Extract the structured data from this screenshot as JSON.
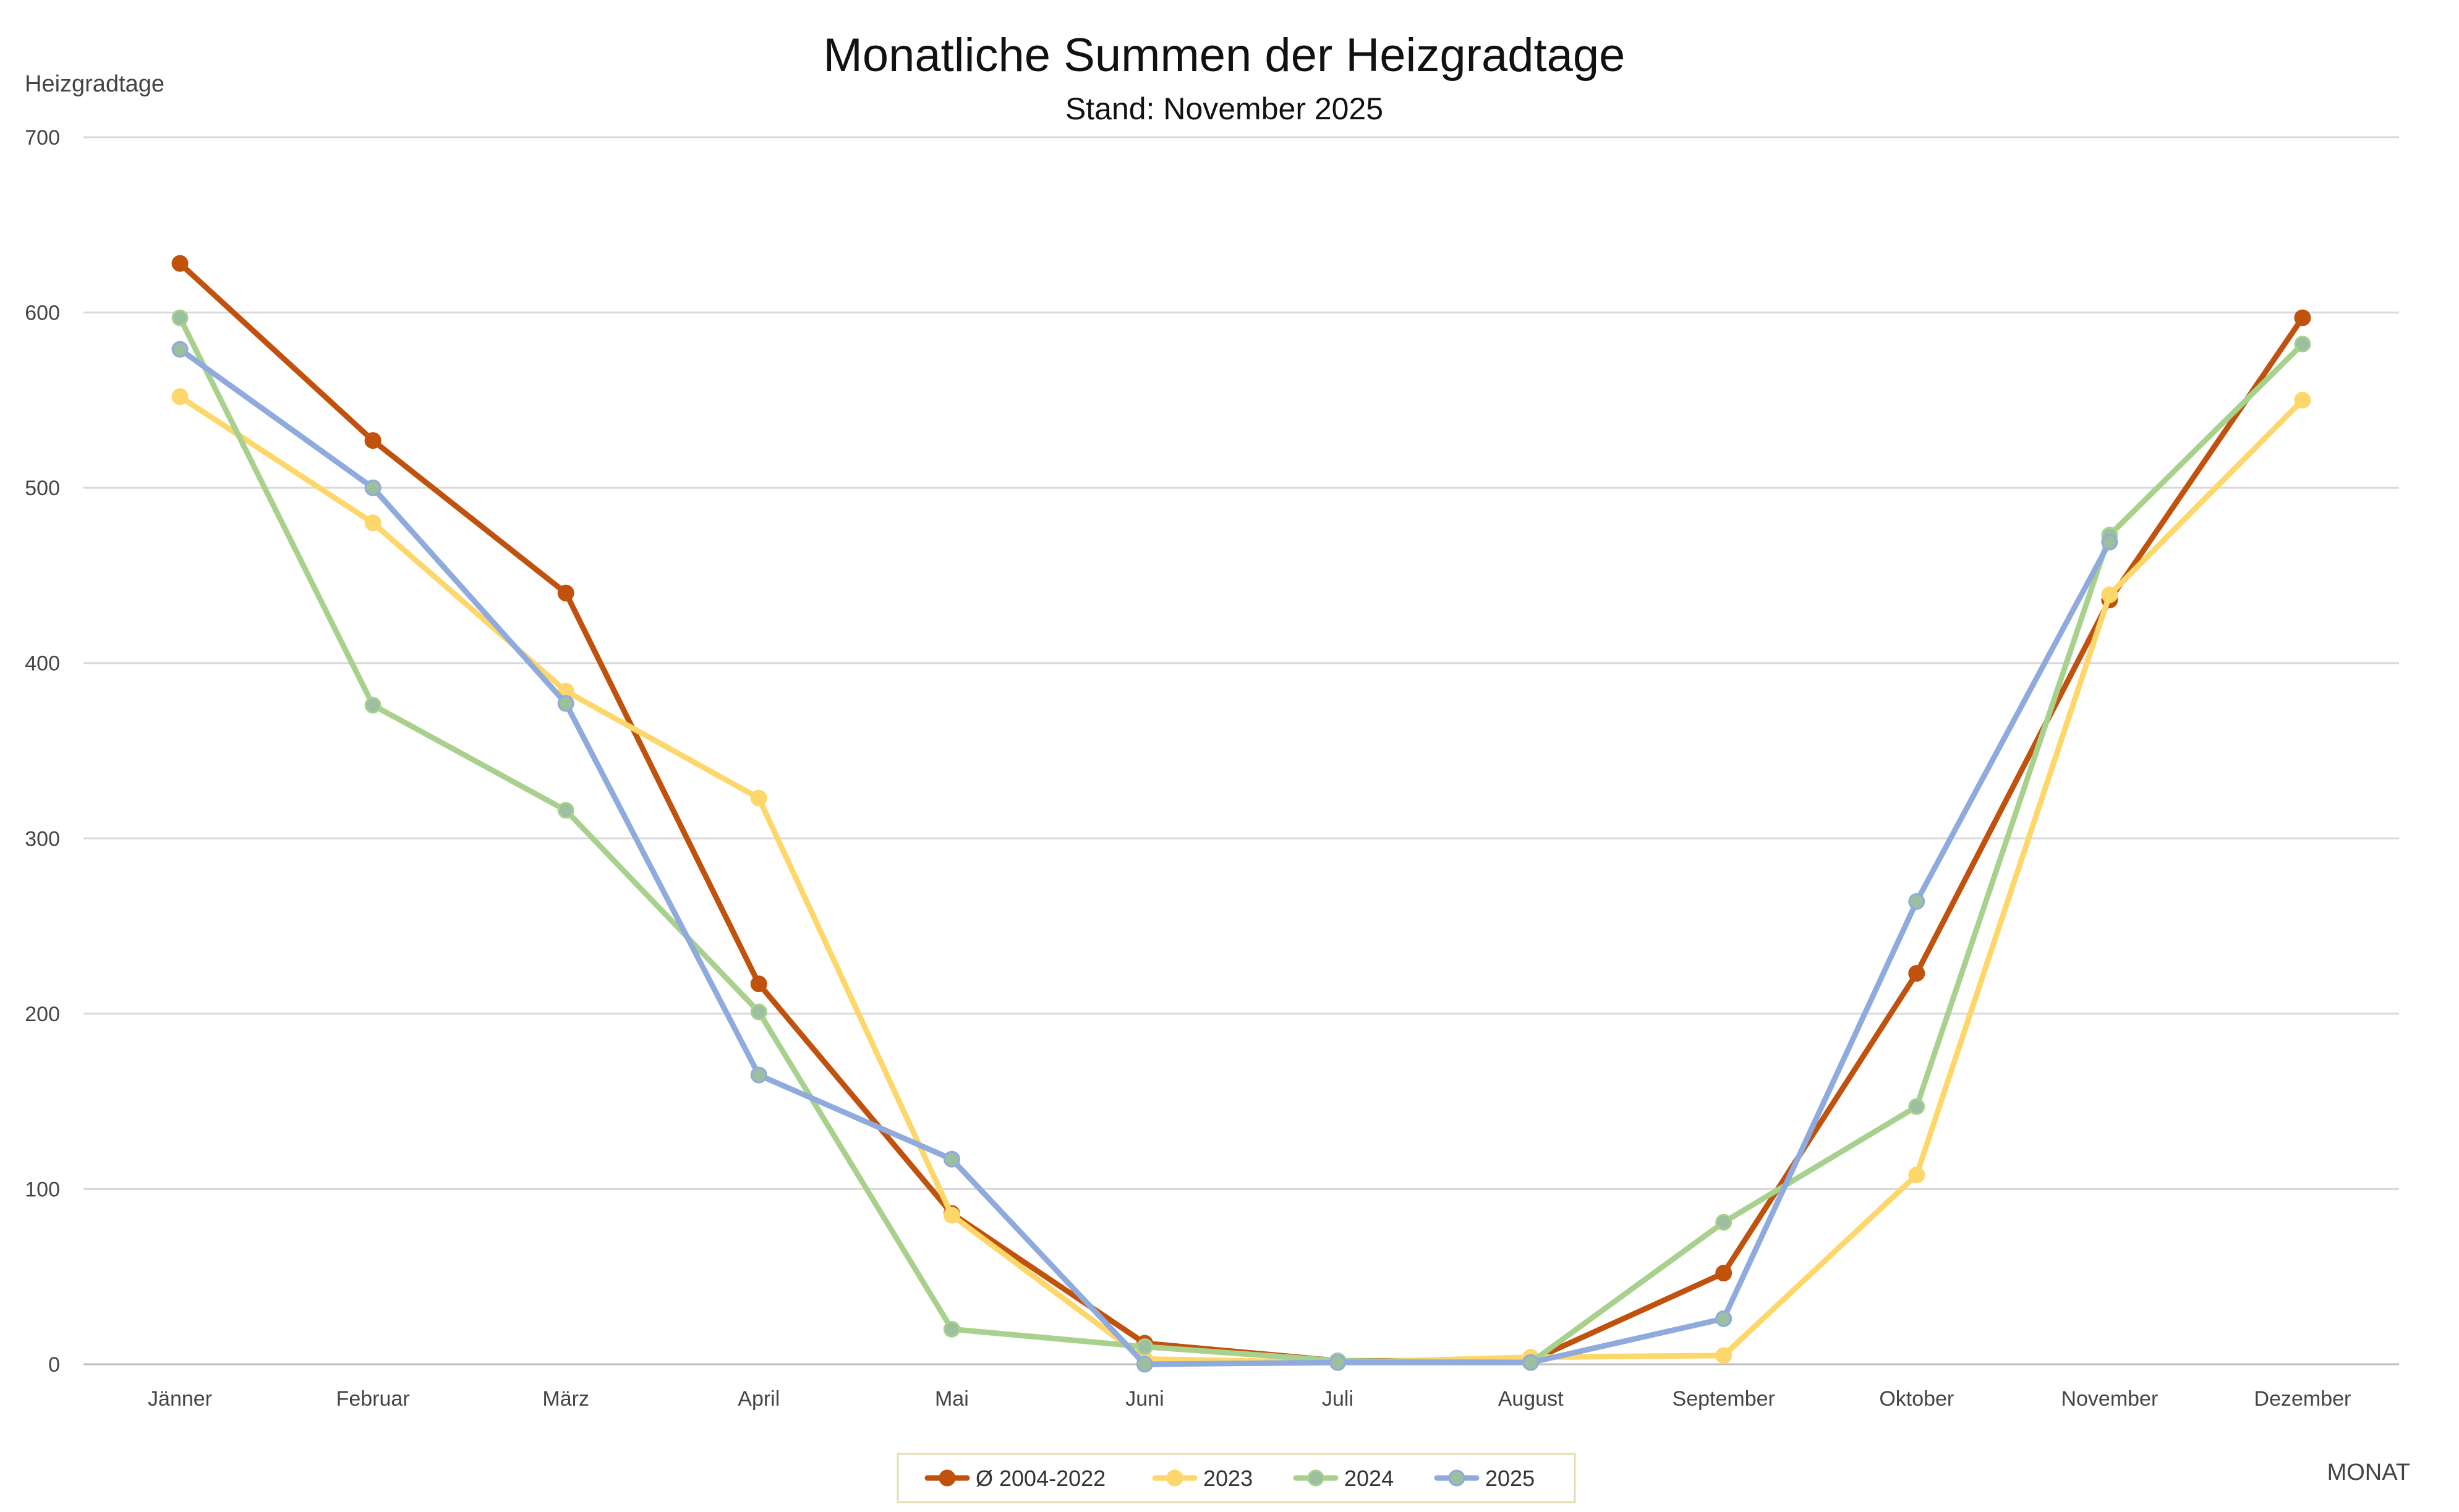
{
  "chart_data": {
    "type": "line",
    "title": "Monatliche Summen der Heizgradtage",
    "subtitle": "Stand: November 2025",
    "ylabel": "Heizgradtage",
    "xlabel": "MONAT",
    "ylim": [
      0,
      700
    ],
    "yticks": [
      0,
      100,
      200,
      300,
      400,
      500,
      600,
      700
    ],
    "grid": true,
    "legend_position": "bottom",
    "categories": [
      "Jänner",
      "Februar",
      "März",
      "April",
      "Mai",
      "Juni",
      "Juli",
      "August",
      "September",
      "Oktober",
      "November",
      "Dezember"
    ],
    "series": [
      {
        "name": "Ø 2004-2022",
        "color": "#c0520e",
        "marker_color": "#c0520e",
        "values": [
          628,
          527,
          440,
          217,
          86,
          12,
          2,
          2,
          52,
          223,
          436,
          597
        ]
      },
      {
        "name": "2023",
        "color": "#fdd769",
        "marker_color": "#fdd769",
        "values": [
          552,
          480,
          384,
          323,
          85,
          3,
          1,
          4,
          5,
          108,
          439,
          550
        ]
      },
      {
        "name": "2024",
        "color": "#a9d18e",
        "marker_color": "#9bbf9f",
        "values": [
          597,
          376,
          316,
          201,
          20,
          10,
          2,
          1,
          81,
          147,
          473,
          582
        ]
      },
      {
        "name": "2025",
        "color": "#8faadc",
        "marker_color": "#9bbf9f",
        "values": [
          579,
          500,
          377,
          165,
          117,
          0,
          1,
          1,
          26,
          264,
          469,
          null
        ]
      }
    ]
  }
}
